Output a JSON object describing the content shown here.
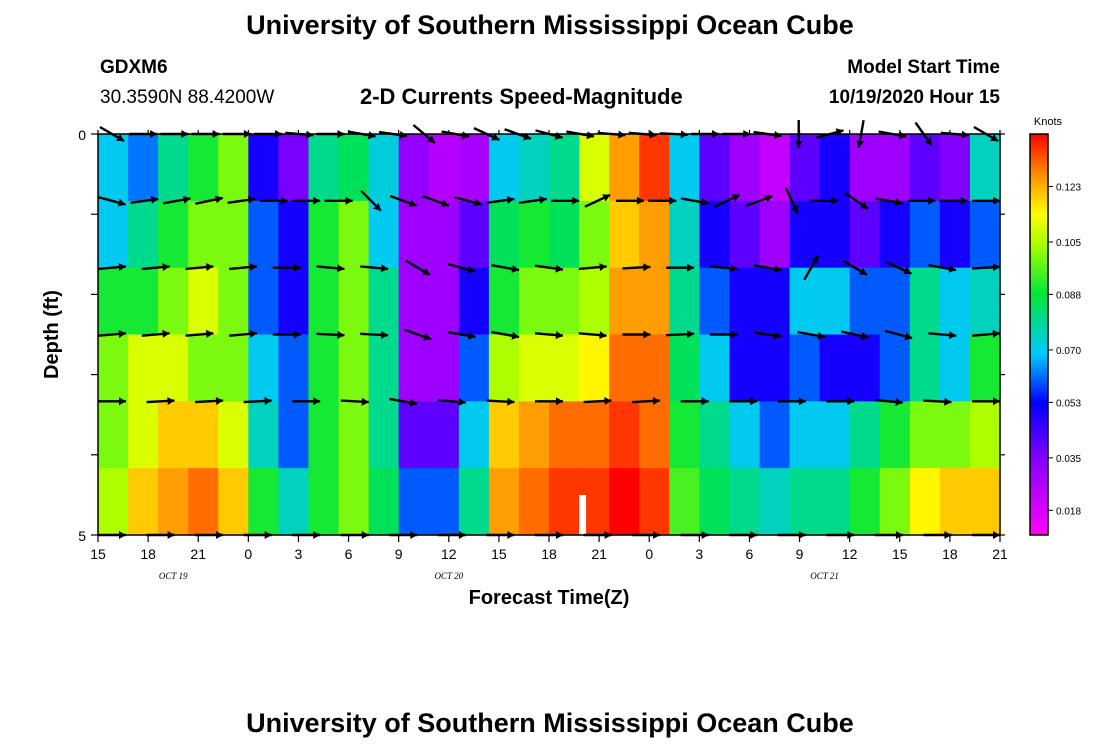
{
  "header": {
    "title_top": "University of Southern Mississippi Ocean Cube",
    "title_bottom": "University of Southern Mississippi Ocean Cube",
    "station": "GDXM6",
    "coords": "30.3590N 88.4200W",
    "subtitle": "2-D Currents Speed-Magnitude",
    "model_start_label": "Model Start Time",
    "model_start_value": "10/19/2020 Hour 15"
  },
  "chart_data": {
    "type": "heatmap",
    "title": "2-D Currents Speed-Magnitude",
    "xlabel": "Forecast Time(Z)",
    "ylabel": "Depth (ft)",
    "y_range_ft": [
      0,
      5
    ],
    "y_tick_labels": [
      "0",
      "5"
    ],
    "x_tick_labels": [
      "15",
      "18",
      "21",
      "0",
      "3",
      "6",
      "9",
      "12",
      "15",
      "18",
      "21",
      "0",
      "3",
      "6",
      "9",
      "12",
      "15",
      "18",
      "21"
    ],
    "date_labels": [
      {
        "label": "OCT 19",
        "tick_index": 1.5
      },
      {
        "label": "OCT 20",
        "tick_index": 7
      },
      {
        "label": "OCT 21",
        "tick_index": 14.5
      }
    ],
    "colorbar": {
      "unit": "Knots",
      "range": [
        0.01,
        0.14
      ],
      "tick_labels": [
        "0.123",
        "0.105",
        "0.088",
        "0.070",
        "0.053",
        "0.035",
        "0.018"
      ],
      "tick_values": [
        0.123,
        0.105,
        0.088,
        0.07,
        0.053,
        0.035,
        0.018
      ]
    },
    "speed_rows_knots": [
      [
        0.07,
        0.062,
        0.08,
        0.09,
        0.1,
        0.05,
        0.036,
        0.08,
        0.085,
        0.072,
        0.032,
        0.025,
        0.028,
        0.07,
        0.075,
        0.08,
        0.11,
        0.125,
        0.135,
        0.07,
        0.04,
        0.03,
        0.022,
        0.04,
        0.05,
        0.03,
        0.03,
        0.04,
        0.035,
        0.075
      ],
      [
        0.07,
        0.08,
        0.09,
        0.1,
        0.1,
        0.06,
        0.05,
        0.09,
        0.1,
        0.07,
        0.03,
        0.03,
        0.04,
        0.085,
        0.09,
        0.085,
        0.1,
        0.12,
        0.125,
        0.075,
        0.05,
        0.04,
        0.03,
        0.05,
        0.05,
        0.04,
        0.05,
        0.06,
        0.05,
        0.06
      ],
      [
        0.09,
        0.09,
        0.1,
        0.11,
        0.1,
        0.06,
        0.05,
        0.09,
        0.1,
        0.08,
        0.03,
        0.03,
        0.05,
        0.09,
        0.1,
        0.1,
        0.105,
        0.125,
        0.125,
        0.08,
        0.06,
        0.05,
        0.05,
        0.07,
        0.07,
        0.06,
        0.06,
        0.08,
        0.07,
        0.075
      ],
      [
        0.1,
        0.11,
        0.11,
        0.1,
        0.1,
        0.07,
        0.06,
        0.09,
        0.1,
        0.08,
        0.03,
        0.03,
        0.06,
        0.105,
        0.11,
        0.11,
        0.115,
        0.13,
        0.13,
        0.085,
        0.07,
        0.05,
        0.05,
        0.06,
        0.05,
        0.05,
        0.06,
        0.08,
        0.07,
        0.09
      ],
      [
        0.1,
        0.11,
        0.12,
        0.12,
        0.11,
        0.075,
        0.06,
        0.09,
        0.1,
        0.08,
        0.04,
        0.04,
        0.07,
        0.12,
        0.125,
        0.13,
        0.13,
        0.135,
        0.13,
        0.09,
        0.08,
        0.07,
        0.06,
        0.07,
        0.07,
        0.08,
        0.09,
        0.1,
        0.1,
        0.105
      ],
      [
        0.105,
        0.12,
        0.125,
        0.13,
        0.12,
        0.09,
        0.075,
        0.09,
        0.1,
        0.085,
        0.06,
        0.06,
        0.08,
        0.125,
        0.13,
        0.135,
        0.135,
        0.14,
        0.135,
        0.095,
        0.085,
        0.08,
        0.075,
        0.08,
        0.08,
        0.09,
        0.1,
        0.115,
        0.12,
        0.12
      ]
    ],
    "arrow_rows_deg": [
      [
        30,
        0,
        0,
        0,
        0,
        0,
        5,
        0,
        10,
        8,
        40,
        10,
        25,
        20,
        15,
        10,
        5,
        5,
        3,
        0,
        0,
        8,
        90,
        -15,
        100,
        10,
        55,
        5,
        30
      ],
      [
        15,
        -8,
        -10,
        -12,
        -8,
        0,
        0,
        0,
        45,
        20,
        20,
        15,
        -8,
        -8,
        0,
        -25,
        0,
        0,
        10,
        -25,
        -20,
        65,
        0,
        35,
        10,
        0,
        0,
        0
      ],
      [
        -5,
        -5,
        -5,
        -5,
        0,
        5,
        5,
        30,
        15,
        10,
        8,
        -5,
        -3,
        0,
        5,
        10,
        -60,
        30,
        25,
        10,
        -3
      ],
      [
        -5,
        -5,
        -5,
        -5,
        0,
        3,
        3,
        20,
        10,
        10,
        5,
        5,
        0,
        -3,
        0,
        8,
        10,
        12,
        15,
        5,
        -5
      ],
      [
        0,
        -3,
        -3,
        -3,
        0,
        3,
        10,
        5,
        3,
        0,
        -3,
        -3,
        0,
        0,
        0,
        0,
        5,
        3,
        0
      ],
      [
        0,
        0,
        0,
        0,
        0,
        0,
        0,
        0,
        0,
        0,
        0,
        0,
        0,
        0,
        0,
        0,
        0,
        0,
        0
      ]
    ]
  }
}
